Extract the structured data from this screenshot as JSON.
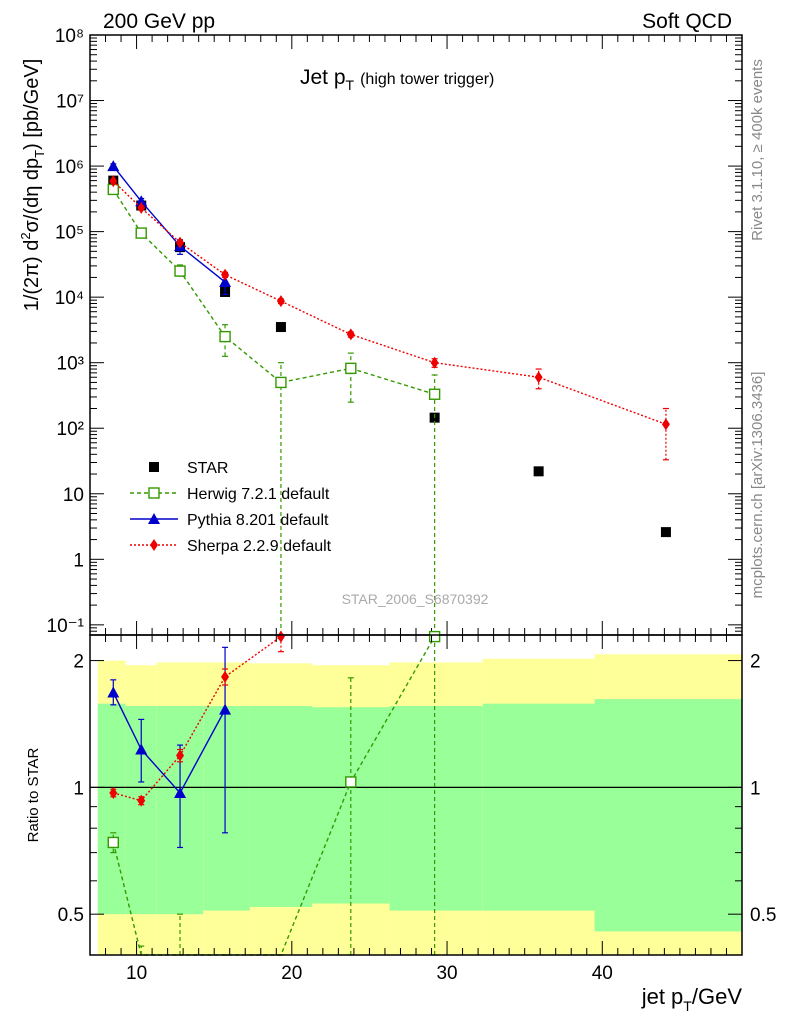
{
  "header": {
    "left": "200 GeV pp",
    "right": "Soft QCD"
  },
  "side_labels": {
    "rivet": "Rivet 3.1.10, ≥ 400k events",
    "mcplots": "mcplots.cern.ch [arXiv:1306.3436]"
  },
  "analysis_id": "STAR_2006_S6870392",
  "colors": {
    "star": "#000000",
    "herwig": "#339900",
    "pythia": "#0000cc",
    "sherpa": "#ee0000",
    "band_yellow": "#ffff99",
    "band_green": "#99ff99"
  },
  "chart_data": [
    {
      "type": "scatter",
      "title": "Jet p_T (high tower trigger)",
      "title_main": "Jet p",
      "title_sub": "T",
      "title_note": "(high tower trigger)",
      "ylabel": "1/(2π) d²σ/(dη dp_T) [pb/GeV]",
      "xlim": [
        7,
        49
      ],
      "ylim": [
        0.07,
        100000000
      ],
      "yscale": "log",
      "y_tick_labels": [
        "10⁻¹",
        "1",
        "10",
        "10²",
        "10³",
        "10⁴",
        "10⁵",
        "10⁶",
        "10⁷",
        "10⁸"
      ],
      "legend_position": "bottom-left",
      "series": [
        {
          "name": "STAR",
          "x": [
            8.5,
            10.3,
            12.8,
            15.7,
            19.3,
            23.8,
            29.2,
            35.9,
            44.1
          ],
          "y": [
            600000,
            250000,
            58000,
            12000,
            3500,
            800,
            145,
            22,
            2.6
          ]
        },
        {
          "name": "Herwig 7.2.1 default",
          "x": [
            8.5,
            10.3,
            12.8,
            15.7,
            19.3,
            23.8,
            29.2
          ],
          "y": [
            440000,
            95000,
            25000,
            2500,
            500,
            820,
            330
          ],
          "err_lo": [
            390000,
            85000,
            21000,
            1250,
            0.03,
            250,
            0.03
          ],
          "err_hi": [
            500000,
            110000,
            31000,
            3800,
            1000,
            1400,
            650
          ]
        },
        {
          "name": "Pythia 8.201 default",
          "x": [
            8.5,
            10.3,
            12.8,
            15.7
          ],
          "y": [
            1000000,
            290000,
            60000,
            17000
          ],
          "err_lo": [
            920000,
            260000,
            45000,
            11000
          ],
          "err_hi": [
            1080000,
            320000,
            75000,
            23000
          ]
        },
        {
          "name": "Sherpa 2.2.9 default",
          "x": [
            8.5,
            10.3,
            12.8,
            15.7,
            19.3,
            23.8,
            29.2,
            35.9,
            44.1
          ],
          "y": [
            590000,
            230000,
            68000,
            22000,
            8700,
            2700,
            1000,
            600,
            115
          ],
          "err_lo": [
            570000,
            220000,
            64000,
            20000,
            8000,
            2450,
            850,
            400,
            33
          ],
          "err_hi": [
            610000,
            240000,
            72000,
            24000,
            9400,
            2950,
            1150,
            800,
            200
          ]
        }
      ]
    },
    {
      "type": "line",
      "ylabel": "Ratio to STAR",
      "xlabel": "jet p_T/GeV",
      "xlabel_main": "jet p",
      "xlabel_sub": "T",
      "xlabel_unit": "/GeV",
      "xlim": [
        7,
        49
      ],
      "ylim": [
        0.4,
        2.3
      ],
      "yscale": "log",
      "x_tick_labels": [
        "10",
        "20",
        "30",
        "40"
      ],
      "y_tick_labels": [
        "0.5",
        "1",
        "2"
      ],
      "bands": {
        "edges": [
          7.5,
          9.3,
          11.3,
          14.3,
          17.3,
          21.3,
          26.3,
          32.3,
          39.5,
          49.0
        ],
        "yellow_lo": [
          0.35,
          0.35,
          0.35,
          0.35,
          0.35,
          0.35,
          0.35,
          0.35,
          0.35
        ],
        "yellow_hi": [
          2.0,
          1.95,
          1.98,
          1.98,
          1.97,
          1.95,
          1.98,
          2.02,
          2.07
        ],
        "green_lo": [
          0.5,
          0.5,
          0.5,
          0.51,
          0.52,
          0.53,
          0.51,
          0.51,
          0.455
        ],
        "green_hi": [
          1.58,
          1.56,
          1.56,
          1.56,
          1.56,
          1.55,
          1.56,
          1.58,
          1.62
        ]
      },
      "series": [
        {
          "name": "Herwig 7.2.1 default",
          "x": [
            8.5,
            10.3,
            12.8,
            15.7,
            19.3,
            23.8,
            29.2
          ],
          "y": [
            0.74,
            0.38,
            0.39,
            0.21,
            0.14,
            1.03,
            2.28
          ],
          "err_lo": [
            0.7,
            0.35,
            0.35,
            0.1,
            0.01,
            0.3,
            0.01
          ],
          "err_hi": [
            0.78,
            0.42,
            0.5,
            0.32,
            0.29,
            1.82,
            3.0
          ]
        },
        {
          "name": "Pythia 8.201 default",
          "x": [
            8.5,
            10.3,
            12.8,
            15.7
          ],
          "y": [
            1.68,
            1.23,
            0.97,
            1.53
          ],
          "err_lo": [
            1.57,
            1.03,
            0.72,
            0.78
          ],
          "err_hi": [
            1.8,
            1.45,
            1.26,
            2.15
          ]
        },
        {
          "name": "Sherpa 2.2.9 default",
          "x": [
            8.5,
            10.3,
            12.8,
            15.7,
            19.3
          ],
          "y": [
            0.97,
            0.93,
            1.19,
            1.83,
            2.28
          ],
          "err_lo": [
            0.95,
            0.91,
            1.15,
            1.75,
            2.1
          ],
          "err_hi": [
            0.99,
            0.95,
            1.23,
            1.91,
            2.46
          ]
        }
      ]
    }
  ]
}
